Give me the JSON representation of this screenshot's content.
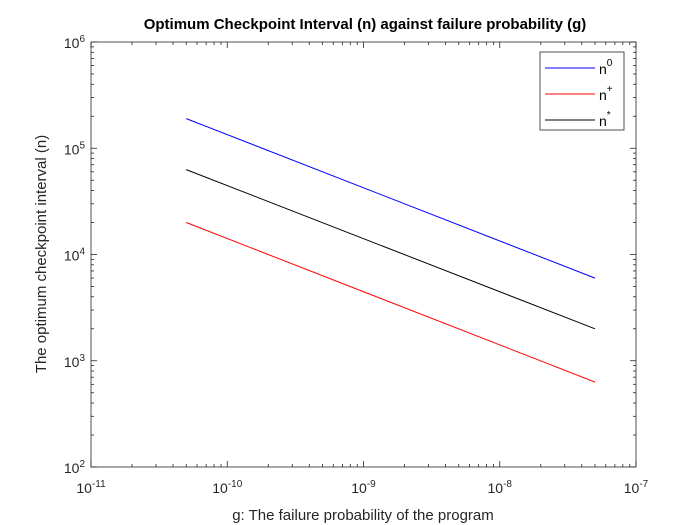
{
  "chart_data": {
    "type": "line",
    "title": "Optimum Checkpoint Interval (n) against failure probability (g)",
    "xlabel": "g: The failure probability of the program",
    "ylabel": "The optimum checkpoint interval (n)",
    "xscale": "log",
    "yscale": "log",
    "xlim": [
      1e-11,
      1e-07
    ],
    "ylim": [
      100,
      1000000
    ],
    "grid": false,
    "legend_position": "top-right",
    "xticks": [
      {
        "base": "10",
        "exp": "-11",
        "value": 1e-11
      },
      {
        "base": "10",
        "exp": "-10",
        "value": 1e-10
      },
      {
        "base": "10",
        "exp": "-9",
        "value": 1e-09
      },
      {
        "base": "10",
        "exp": "-8",
        "value": 1e-08
      },
      {
        "base": "10",
        "exp": "-7",
        "value": 1e-07
      }
    ],
    "yticks": [
      {
        "base": "10",
        "exp": "2",
        "value": 100
      },
      {
        "base": "10",
        "exp": "3",
        "value": 1000
      },
      {
        "base": "10",
        "exp": "4",
        "value": 10000
      },
      {
        "base": "10",
        "exp": "5",
        "value": 100000
      },
      {
        "base": "10",
        "exp": "6",
        "value": 1000000
      }
    ],
    "series": [
      {
        "name": "n",
        "name_sup": "0",
        "color": "#0000ff",
        "x": [
          5e-11,
          5e-08
        ],
        "y": [
          190000,
          6000
        ]
      },
      {
        "name": "n",
        "name_sup": "+",
        "color": "#ff0000",
        "x": [
          5e-11,
          5e-08
        ],
        "y": [
          20000,
          630
        ]
      },
      {
        "name": "n",
        "name_sup": "*",
        "color": "#000000",
        "x": [
          5e-11,
          5e-08
        ],
        "y": [
          63000,
          2000
        ]
      }
    ]
  }
}
